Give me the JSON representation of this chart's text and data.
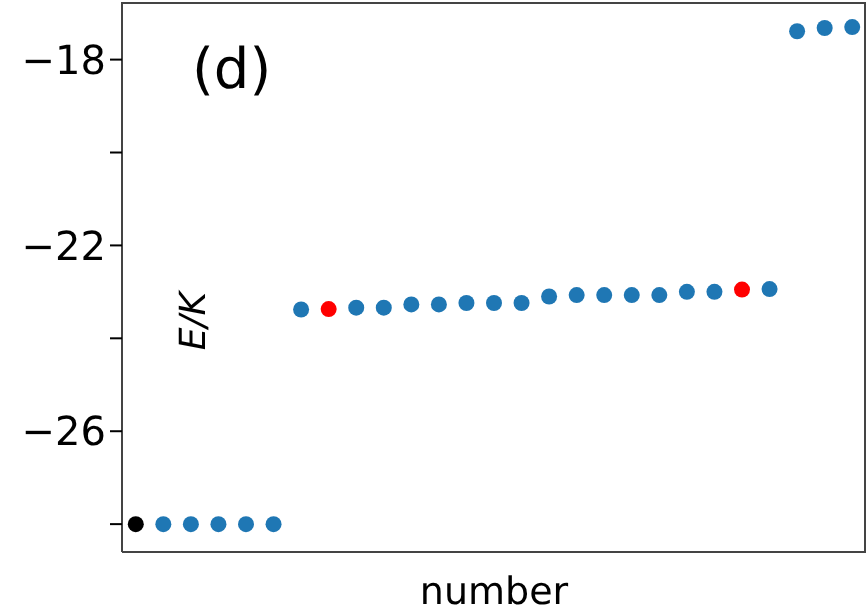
{
  "chart_data": {
    "type": "scatter",
    "xlabel": "number",
    "ylabel": "E/K",
    "annotations": [
      "(d)"
    ],
    "categories": [
      null,
      null,
      null,
      null,
      null,
      null,
      null,
      null,
      null,
      null,
      null,
      null,
      null,
      null,
      null,
      null,
      null,
      null,
      null,
      null,
      null,
      null,
      null,
      null,
      null,
      null,
      null
    ],
    "series": [
      {
        "values": [
          -28.0,
          -28.0,
          -28.0,
          -28.0,
          -28.0,
          -28.0,
          -23.38,
          -23.37,
          -23.34,
          -23.34,
          -23.27,
          -23.27,
          -23.24,
          -23.24,
          -23.24,
          -23.1,
          -23.07,
          -23.07,
          -23.07,
          -23.07,
          -23.0,
          -23.0,
          -22.95,
          -22.94,
          -17.39,
          -17.32,
          -17.3
        ],
        "colors": [
          "#000000",
          "#1f77b4",
          "#1f77b4",
          "#1f77b4",
          "#1f77b4",
          "#1f77b4",
          "#1f77b4",
          "#ff0000",
          "#1f77b4",
          "#1f77b4",
          "#1f77b4",
          "#1f77b4",
          "#1f77b4",
          "#1f77b4",
          "#1f77b4",
          "#1f77b4",
          "#1f77b4",
          "#1f77b4",
          "#1f77b4",
          "#1f77b4",
          "#1f77b4",
          "#1f77b4",
          "#ff0000",
          "#1f77b4",
          "#1f77b4",
          "#1f77b4",
          "#1f77b4"
        ]
      }
    ],
    "ylim": [
      -28.6,
      -16.76
    ],
    "yticks": [
      {
        "value": -28,
        "label": null
      },
      {
        "value": -26,
        "label": "−26"
      },
      {
        "value": -24,
        "label": null
      },
      {
        "value": -22,
        "label": "−22"
      },
      {
        "value": -20,
        "label": null
      },
      {
        "value": -18,
        "label": "−18"
      }
    ],
    "tick_labels": "y",
    "marker": "circle"
  }
}
